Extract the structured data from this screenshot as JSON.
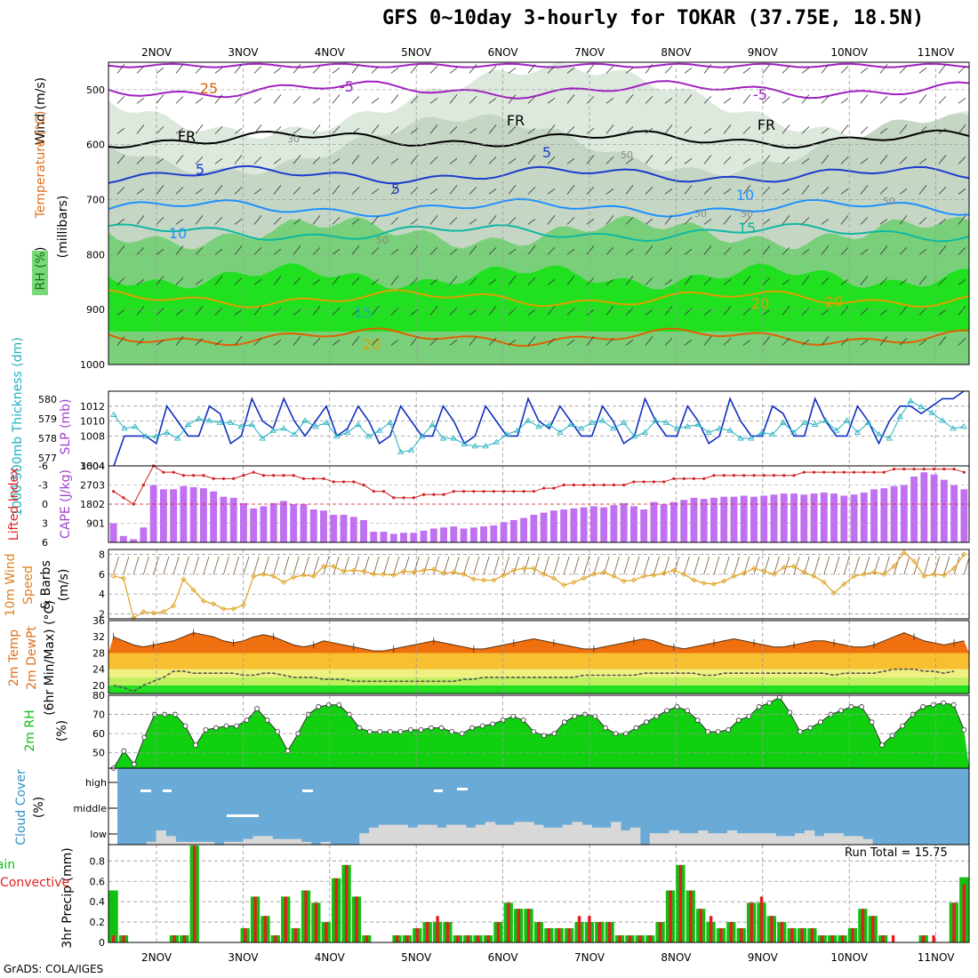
{
  "title": "GFS 0~10day 3-hourly for TOKAR (37.75E, 18.5N)",
  "credit": "GrADS: COLA/IGES",
  "dates": [
    "2NOV",
    "3NOV",
    "4NOV",
    "5NOV",
    "6NOV",
    "7NOV",
    "8NOV",
    "9NOV",
    "10NOV",
    "11NOV"
  ],
  "chart_data": [
    {
      "type": "heatmap",
      "title": "Upper air cross-section",
      "legend": [
        "RH (%)",
        "Temperature (°C)",
        "Wind (m/s)"
      ],
      "ylabel_parts": [
        "RH (%)",
        "Temperature (°C)",
        "Wind (m/s)",
        "(millibars)"
      ],
      "yticks": [
        500,
        600,
        700,
        800,
        900,
        1000
      ],
      "ylim": [
        450,
        1000
      ],
      "rh_contours": [
        30,
        50,
        70,
        90
      ],
      "temp_lines": [
        {
          "label": "-5",
          "p": 500,
          "color": "#a020c0"
        },
        {
          "label": "FR",
          "p": 590,
          "color": "#000000"
        },
        {
          "label": "5",
          "p": 655,
          "color": "#1c3ccc"
        },
        {
          "label": "10",
          "p": 715,
          "color": "#1e90ff"
        },
        {
          "label": "15",
          "p": 760,
          "color": "#10b8a0"
        },
        {
          "label": "20",
          "p": 880,
          "color": "#e0a000"
        },
        {
          "label": "25",
          "p": 950,
          "color": "#e06000"
        }
      ],
      "temp_labels": [
        "-5",
        "-5",
        "FR",
        "FR",
        "FR",
        "5",
        "5",
        "5",
        "10",
        "10",
        "15",
        "15",
        "20",
        "20",
        "20",
        "25",
        "30",
        "50",
        "50",
        "50",
        "50",
        "50"
      ]
    },
    {
      "type": "line",
      "title": "Thickness and SLP",
      "ylabel_left": "1000-500mb Thickness (dm)",
      "ylabel_right": "SLP (mb)",
      "left_ticks": [
        577,
        578,
        579,
        580
      ],
      "right_ticks": [
        1004,
        1008,
        1010,
        1012
      ],
      "series": [
        {
          "name": "SLP",
          "color": "#1030c0",
          "values": [
            1004,
            1008,
            1008,
            1008,
            1007,
            1012,
            1010,
            1008,
            1008,
            1012,
            1011,
            1007,
            1008,
            1013,
            1010,
            1009,
            1013,
            1010,
            1008,
            1010,
            1012,
            1008,
            1009,
            1012,
            1010,
            1007,
            1008,
            1012,
            1010,
            1008,
            1008,
            1012,
            1010,
            1007,
            1008,
            1012,
            1010,
            1008,
            1008,
            1013,
            1010,
            1009,
            1012,
            1010,
            1008,
            1008,
            1012,
            1010,
            1007,
            1008,
            1013,
            1010,
            1008,
            1008,
            1012,
            1010,
            1007,
            1008,
            1013,
            1010,
            1008,
            1008,
            1012,
            1011,
            1008,
            1008,
            1013,
            1010,
            1008,
            1008,
            1012,
            1010,
            1007,
            1010,
            1012,
            1012,
            1011,
            1012,
            1013,
            1013,
            1014
          ]
        },
        {
          "name": "Thickness",
          "color": "#20b0c0",
          "values": [
            579.2,
            578.5,
            578.6,
            578.1,
            578.1,
            578.3,
            578.0,
            578.7,
            579.0,
            578.9,
            578.8,
            578.8,
            578.6,
            578.7,
            578.0,
            578.4,
            578.5,
            578.2,
            578.9,
            578.6,
            578.8,
            578.1,
            578.3,
            578.7,
            578.1,
            578.4,
            578.8,
            577.3,
            577.4,
            578.1,
            578.7,
            578.0,
            578.0,
            577.7,
            577.6,
            577.6,
            577.8,
            578.2,
            578.4,
            578.9,
            578.6,
            578.7,
            578.3,
            578.7,
            578.5,
            578.8,
            578.9,
            578.5,
            578.8,
            578.1,
            578.3,
            578.9,
            578.8,
            578.5,
            578.6,
            578.7,
            578.3,
            578.5,
            578.4,
            578.0,
            578.0,
            578.3,
            578.2,
            578.8,
            578.3,
            578.8,
            578.7,
            578.9,
            578.4,
            578.9,
            578.3,
            578.8,
            578.2,
            578.0,
            579.1,
            579.9,
            579.6,
            579.3,
            578.9,
            578.5,
            578.6
          ]
        }
      ]
    },
    {
      "type": "bar",
      "title": "Lifted Index and CAPE",
      "ylabel_left": "Lifted Index",
      "ylabel_right": "CAPE (J/kg)",
      "li_ticks": [
        -6,
        -3,
        0,
        3,
        6
      ],
      "cape_ticks": [
        901,
        1802,
        2703,
        3604
      ],
      "cape": [
        900,
        300,
        150,
        700,
        2700,
        2500,
        2500,
        2650,
        2600,
        2550,
        2400,
        2150,
        2100,
        1850,
        1600,
        1700,
        1850,
        1950,
        1800,
        1800,
        1550,
        1500,
        1300,
        1300,
        1200,
        1050,
        500,
        500,
        400,
        450,
        450,
        550,
        650,
        700,
        750,
        650,
        700,
        750,
        800,
        950,
        1050,
        1150,
        1300,
        1400,
        1500,
        1550,
        1600,
        1650,
        1700,
        1650,
        1750,
        1850,
        1700,
        1550,
        1900,
        1800,
        1900,
        2000,
        2100,
        2050,
        2100,
        2150,
        2150,
        2200,
        2150,
        2200,
        2250,
        2300,
        2300,
        2250,
        2300,
        2350,
        2300,
        2200,
        2250,
        2350,
        2500,
        2550,
        2650,
        2700,
        3100,
        3300,
        3200,
        2950,
        2700,
        2500
      ],
      "li": [
        -2,
        -1,
        0,
        -3,
        -6,
        -5,
        -5,
        -4.5,
        -4.5,
        -4.5,
        -4,
        -4,
        -4,
        -4.5,
        -5,
        -4.5,
        -4.5,
        -4.5,
        -4.5,
        -4,
        -4,
        -4,
        -3.5,
        -3.5,
        -3.5,
        -3,
        -2,
        -2,
        -1,
        -1,
        -1,
        -1.5,
        -1.5,
        -1.5,
        -2,
        -2,
        -2,
        -2,
        -2,
        -2,
        -2,
        -2,
        -2,
        -2.5,
        -2.5,
        -3,
        -3,
        -3,
        -3,
        -3,
        -3,
        -3,
        -3.5,
        -3.5,
        -3.5,
        -3.5,
        -4,
        -4,
        -4,
        -4,
        -4.5,
        -4.5,
        -4.5,
        -4.5,
        -4.5,
        -4.5,
        -4.5,
        -4.5,
        -4.5,
        -5,
        -5,
        -5,
        -5,
        -5,
        -5,
        -5,
        -5,
        -5,
        -5.5,
        -5.5,
        -5.5,
        -5.5,
        -5.5,
        -5.5,
        -5.5,
        -5
      ]
    },
    {
      "type": "line",
      "title": "10m Wind Speed & Barbs",
      "ylabel_parts": [
        "10m Wind",
        "Speed",
        "& Barbs",
        "(m/s)"
      ],
      "yticks": [
        2,
        4,
        6,
        8
      ],
      "ylim": [
        1.5,
        8.5
      ],
      "values": [
        5.8,
        5.6,
        1.6,
        2.2,
        2.1,
        2.2,
        2.8,
        5.5,
        4.4,
        3.3,
        3.0,
        2.5,
        2.5,
        2.9,
        5.8,
        6.0,
        5.8,
        5.2,
        5.7,
        5.9,
        5.8,
        6.8,
        6.8,
        6.3,
        6.4,
        6.3,
        6.0,
        6.0,
        5.9,
        6.3,
        6.2,
        6.4,
        6.5,
        6.1,
        6.2,
        6.0,
        5.5,
        5.4,
        5.4,
        5.9,
        6.4,
        6.6,
        6.6,
        6.0,
        5.6,
        4.9,
        5.2,
        5.6,
        6.0,
        6.2,
        5.8,
        5.3,
        5.4,
        5.8,
        5.9,
        6.1,
        6.4,
        6.0,
        5.4,
        5.1,
        5.0,
        5.3,
        5.8,
        6.1,
        6.6,
        6.3,
        6.0,
        6.7,
        6.8,
        6.2,
        5.8,
        5.2,
        4.1,
        5.0,
        5.8,
        6.0,
        6.2,
        6.0,
        6.8,
        8.2,
        7.3,
        5.8,
        6.0,
        5.9,
        6.6,
        8.0
      ]
    },
    {
      "type": "area",
      "title": "2m Temp / 2m DewPt",
      "ylabel_parts": [
        "2m Temp",
        "2m DewPt",
        "(6hr Min/Max) (°C)"
      ],
      "yticks": [
        20,
        24,
        28,
        32,
        36
      ],
      "ylim": [
        18,
        36
      ],
      "temp": [
        32,
        31,
        30,
        29.5,
        30,
        30.5,
        31,
        32,
        33,
        32.5,
        32,
        31,
        30.5,
        31,
        32,
        32.5,
        32,
        31,
        30,
        29.5,
        30,
        31,
        30.5,
        30,
        29.5,
        29,
        28.5,
        28.5,
        29,
        29.5,
        30,
        30.5,
        31,
        30.5,
        30,
        29.5,
        29,
        29,
        29.5,
        30,
        30.5,
        31,
        31.5,
        31,
        30.5,
        30,
        29.5,
        29,
        29,
        29.5,
        30,
        30.5,
        31,
        31.5,
        31,
        30,
        29.5,
        29,
        29.5,
        30,
        30.5,
        31,
        31.5,
        31,
        30.5,
        30,
        29.5,
        29.5,
        30,
        30.5,
        31,
        31,
        30.5,
        30,
        29.5,
        29.5,
        30,
        31,
        32,
        33,
        32,
        31,
        30.5,
        30,
        30.5,
        31
      ],
      "dewpt": [
        20,
        19.5,
        18.5,
        20,
        21,
        22,
        23.5,
        23.5,
        23,
        23,
        23,
        23,
        23,
        22.5,
        22.5,
        23,
        23,
        22.5,
        22,
        22,
        22,
        21.5,
        21.5,
        21.5,
        21,
        21,
        21,
        21,
        21,
        21,
        21,
        21,
        21,
        21,
        21,
        21.5,
        21.5,
        22,
        22,
        22,
        22,
        22,
        22,
        22,
        22,
        22,
        22,
        22.5,
        22.5,
        22.5,
        22.5,
        22.5,
        22.5,
        23,
        23,
        23,
        23,
        23,
        23,
        22.5,
        22.5,
        23,
        23,
        23,
        23,
        23,
        23,
        23,
        23,
        23,
        23,
        23,
        22.5,
        23,
        23,
        23,
        23,
        23.5,
        24,
        24,
        24,
        23.5,
        23.5,
        23,
        23.5
      ]
    },
    {
      "type": "area",
      "title": "2m RH",
      "ylabel_parts": [
        "2m RH",
        "(%)"
      ],
      "yticks": [
        50,
        60,
        70,
        80
      ],
      "ylim": [
        42,
        80
      ],
      "values": [
        42,
        51,
        44,
        58,
        70,
        70,
        70,
        64,
        54,
        62,
        63,
        64,
        64,
        67,
        73,
        67,
        61,
        51,
        60,
        70,
        74,
        75,
        75,
        70,
        63,
        61,
        61,
        61,
        61,
        62,
        62,
        63,
        63,
        61,
        60,
        63,
        64,
        65,
        67,
        69,
        67,
        61,
        59,
        60,
        66,
        69,
        70,
        69,
        63,
        60,
        60,
        63,
        66,
        69,
        72,
        74,
        72,
        67,
        61,
        61,
        62,
        67,
        69,
        74,
        76,
        79,
        71,
        61,
        63,
        66,
        70,
        72,
        74,
        74,
        66,
        54,
        59,
        64,
        70,
        74,
        75,
        76,
        75,
        62
      ]
    },
    {
      "type": "heatmap",
      "title": "Cloud Cover",
      "ylabel_parts": [
        "Cloud Cover",
        "(%)"
      ],
      "levels": [
        "high",
        "middle",
        "low"
      ],
      "low": [
        0,
        0,
        0,
        10,
        50,
        30,
        10,
        10,
        10,
        10,
        0,
        10,
        10,
        20,
        30,
        30,
        20,
        20,
        20,
        10,
        0,
        10,
        0,
        0,
        0,
        40,
        60,
        70,
        70,
        70,
        60,
        70,
        70,
        60,
        70,
        70,
        60,
        70,
        80,
        70,
        70,
        80,
        80,
        70,
        60,
        60,
        70,
        80,
        70,
        60,
        60,
        80,
        50,
        60,
        0,
        40,
        40,
        50,
        40,
        40,
        50,
        40,
        40,
        50,
        40,
        40,
        40,
        40,
        30,
        30,
        40,
        50,
        30,
        40,
        40,
        30,
        30,
        20,
        0,
        0,
        0,
        0,
        0,
        0,
        0,
        0,
        0,
        0
      ],
      "high_patches": [
        "2NOV",
        "4NOV",
        "5NOV"
      ]
    },
    {
      "type": "bar",
      "title": "3hr Precip",
      "ylabel_parts": [
        "Total / Rain",
        "Convective",
        "3hr Precip (mm)"
      ],
      "run_total_label": "Run Total = 15.75",
      "yticks": [
        0,
        0.2,
        0.4,
        0.6,
        0.8
      ],
      "ylim": [
        0,
        0.96
      ],
      "series": [
        {
          "name": "Total",
          "color": "#10c010",
          "values": [
            0.51,
            0.07,
            0,
            0,
            0,
            0,
            0.07,
            0.07,
            0.95,
            0,
            0,
            0,
            0,
            0.14,
            0.45,
            0.26,
            0.07,
            0.45,
            0.14,
            0.51,
            0.39,
            0.2,
            0.63,
            0.76,
            0.45,
            0.07,
            0,
            0,
            0.07,
            0.07,
            0.14,
            0.2,
            0.2,
            0.2,
            0.07,
            0.07,
            0.07,
            0.07,
            0.2,
            0.39,
            0.33,
            0.33,
            0.2,
            0.14,
            0.14,
            0.14,
            0.2,
            0.2,
            0.2,
            0.2,
            0.07,
            0.07,
            0.07,
            0.07,
            0.2,
            0.51,
            0.76,
            0.51,
            0.33,
            0.2,
            0.14,
            0.2,
            0.14,
            0.39,
            0.39,
            0.26,
            0.2,
            0.14,
            0.14,
            0.14,
            0.07,
            0.07,
            0.07,
            0.14,
            0.33,
            0.26,
            0.07,
            0,
            0,
            0,
            0.07,
            0,
            0,
            0.39,
            0.64
          ]
        },
        {
          "name": "Convective",
          "color": "#e02020",
          "values": [
            0.07,
            0.07,
            0,
            0,
            0,
            0,
            0.07,
            0.07,
            0.95,
            0,
            0,
            0,
            0,
            0.14,
            0.45,
            0.26,
            0.07,
            0.45,
            0.14,
            0.51,
            0.39,
            0.2,
            0.63,
            0.76,
            0.45,
            0.07,
            0,
            0,
            0.07,
            0.07,
            0.14,
            0.2,
            0.26,
            0.2,
            0.07,
            0.07,
            0.07,
            0.07,
            0.2,
            0.39,
            0.33,
            0.33,
            0.2,
            0.14,
            0.14,
            0.14,
            0.26,
            0.26,
            0.2,
            0.2,
            0.07,
            0.07,
            0.07,
            0.07,
            0.2,
            0.51,
            0.76,
            0.51,
            0.33,
            0.26,
            0.14,
            0.2,
            0.14,
            0.39,
            0.45,
            0.26,
            0.2,
            0.14,
            0.14,
            0.14,
            0.07,
            0.07,
            0.07,
            0.14,
            0.33,
            0.26,
            0.07,
            0.07,
            0,
            0,
            0.07,
            0.07,
            0,
            0.39,
            0.57
          ]
        }
      ]
    }
  ]
}
